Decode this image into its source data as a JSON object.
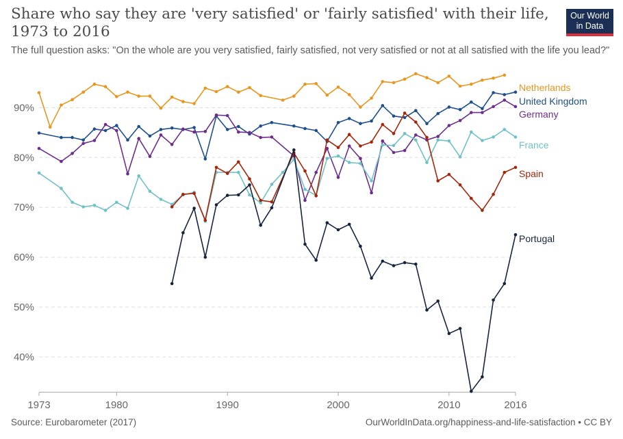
{
  "header": {
    "title": "Share who say they are 'very satisfied' or 'fairly satisfied' with their life, 1973 to 2016",
    "subtitle": "The full question asks: \"On the whole are you very satisfied, fairly satisfied, not very satisfied or not at all satisfied with the life you lead?\"",
    "logo_line1": "Our World",
    "logo_line2": "in Data"
  },
  "footer": {
    "source": "Source: Eurobarometer (2017)",
    "credit": "OurWorldInData.org/happiness-and-life-satisfaction • CC BY"
  },
  "colors": {
    "logo_bg": "#1b2f56",
    "logo_accent": "#d7313e"
  },
  "chart_data": {
    "type": "line",
    "xlim": [
      1973,
      2016
    ],
    "ylim": [
      33,
      98
    ],
    "x_ticks": [
      1973,
      1980,
      1990,
      2000,
      2010,
      2016
    ],
    "x_tick_labels": [
      "1973",
      "1980",
      "1990",
      "2000",
      "2010",
      "2016"
    ],
    "y_ticks": [
      40,
      50,
      60,
      70,
      80,
      90
    ],
    "y_tick_labels": [
      "40%",
      "50%",
      "60%",
      "70%",
      "80%",
      "90%"
    ],
    "grid": "horizontal dashed",
    "legend": "labels at line ends, right",
    "series": [
      {
        "name": "Netherlands",
        "color": "#e8961e",
        "points": [
          [
            1973,
            93
          ],
          [
            1974,
            86.1
          ],
          [
            1975,
            90.5
          ],
          [
            1976,
            91.6
          ],
          [
            1977,
            93.1
          ],
          [
            1978,
            94.7
          ],
          [
            1979,
            94.2
          ],
          [
            1980,
            92.2
          ],
          [
            1981,
            93.1
          ],
          [
            1982,
            92.3
          ],
          [
            1983,
            92.3
          ],
          [
            1984,
            89.9
          ],
          [
            1985,
            92.1
          ],
          [
            1986,
            91.2
          ],
          [
            1987,
            90.8
          ],
          [
            1988,
            93.9
          ],
          [
            1989,
            93.2
          ],
          [
            1990,
            94.2
          ],
          [
            1991,
            93.1
          ],
          [
            1992,
            94
          ],
          [
            1993,
            92.4
          ],
          [
            1995,
            91.5
          ],
          [
            1996,
            92.3
          ],
          [
            1997,
            94.7
          ],
          [
            1998,
            94.8
          ],
          [
            1999,
            92.5
          ],
          [
            2000,
            94.1
          ],
          [
            2001,
            92.6
          ],
          [
            2002,
            90.1
          ],
          [
            2003,
            91.9
          ],
          [
            2004,
            95.2
          ],
          [
            2005,
            95
          ],
          [
            2006,
            95.7
          ],
          [
            2007,
            96.8
          ],
          [
            2008,
            96
          ],
          [
            2009,
            95
          ],
          [
            2010,
            96.3
          ],
          [
            2011,
            94.3
          ],
          [
            2012,
            94.7
          ],
          [
            2013,
            95.5
          ],
          [
            2014,
            95.9
          ],
          [
            2015,
            96.5
          ]
        ]
      },
      {
        "name": "United Kingdom",
        "color": "#1d4f8c",
        "points": [
          [
            1973,
            84.9
          ],
          [
            1975,
            84
          ],
          [
            1976,
            84
          ],
          [
            1977,
            83.5
          ],
          [
            1978,
            85.7
          ],
          [
            1979,
            85.4
          ],
          [
            1980,
            86.4
          ],
          [
            1981,
            83.5
          ],
          [
            1982,
            86.2
          ],
          [
            1983,
            84.3
          ],
          [
            1984,
            85.6
          ],
          [
            1985,
            85.9
          ],
          [
            1986,
            85.6
          ],
          [
            1987,
            86
          ],
          [
            1988,
            79.7
          ],
          [
            1989,
            88.3
          ],
          [
            1990,
            85.6
          ],
          [
            1991,
            86.2
          ],
          [
            1992,
            84.7
          ],
          [
            1993,
            86.3
          ],
          [
            1994,
            87
          ],
          [
            1996,
            86.3
          ],
          [
            1997,
            85.8
          ],
          [
            1998,
            85.4
          ],
          [
            1999,
            83.2
          ],
          [
            2000,
            87
          ],
          [
            2001,
            87.8
          ],
          [
            2002,
            86.8
          ],
          [
            2003,
            87.3
          ],
          [
            2004,
            90.4
          ],
          [
            2005,
            88.3
          ],
          [
            2006,
            88
          ],
          [
            2007,
            89.4
          ],
          [
            2008,
            86.8
          ],
          [
            2009,
            88.8
          ],
          [
            2010,
            90.1
          ],
          [
            2011,
            89.6
          ],
          [
            2012,
            91.1
          ],
          [
            2013,
            89.8
          ],
          [
            2014,
            93
          ],
          [
            2015,
            92.6
          ],
          [
            2016,
            93.1
          ]
        ]
      },
      {
        "name": "Germany",
        "color": "#6d2e8b",
        "points": [
          [
            1973,
            81.8
          ],
          [
            1975,
            79.2
          ],
          [
            1976,
            80.8
          ],
          [
            1977,
            82.8
          ],
          [
            1978,
            83.4
          ],
          [
            1979,
            86.6
          ],
          [
            1980,
            85.4
          ],
          [
            1981,
            76.7
          ],
          [
            1982,
            83.8
          ],
          [
            1983,
            80.2
          ],
          [
            1984,
            84.5
          ],
          [
            1985,
            82.6
          ],
          [
            1986,
            85.7
          ],
          [
            1987,
            85.1
          ],
          [
            1988,
            85.2
          ],
          [
            1989,
            88.5
          ],
          [
            1990,
            88.4
          ],
          [
            1991,
            85.1
          ],
          [
            1992,
            85
          ],
          [
            1993,
            84
          ],
          [
            1994,
            84.1
          ],
          [
            1996,
            80.3
          ],
          [
            1997,
            71.4
          ],
          [
            1998,
            77
          ],
          [
            1999,
            81.8
          ],
          [
            2000,
            76
          ],
          [
            2001,
            82.3
          ],
          [
            2002,
            79.8
          ],
          [
            2003,
            72.9
          ],
          [
            2004,
            83.3
          ],
          [
            2005,
            81
          ],
          [
            2006,
            81.4
          ],
          [
            2007,
            84.5
          ],
          [
            2008,
            83.5
          ],
          [
            2009,
            84.2
          ],
          [
            2010,
            86.4
          ],
          [
            2011,
            87.4
          ],
          [
            2012,
            89
          ],
          [
            2013,
            89
          ],
          [
            2014,
            90.2
          ],
          [
            2015,
            91.5
          ],
          [
            2016,
            90.2
          ]
        ]
      },
      {
        "name": "France",
        "color": "#6fc1c9",
        "points": [
          [
            1973,
            76.9
          ],
          [
            1975,
            73.8
          ],
          [
            1976,
            71
          ],
          [
            1977,
            70.1
          ],
          [
            1978,
            70.4
          ],
          [
            1979,
            69.4
          ],
          [
            1980,
            71
          ],
          [
            1981,
            69.8
          ],
          [
            1982,
            76.3
          ],
          [
            1983,
            73.2
          ],
          [
            1984,
            71.6
          ],
          [
            1985,
            70.6
          ],
          [
            1986,
            72.5
          ],
          [
            1987,
            73
          ],
          [
            1988,
            67.2
          ],
          [
            1989,
            77
          ],
          [
            1990,
            77
          ],
          [
            1991,
            77
          ],
          [
            1992,
            72.5
          ],
          [
            1993,
            70.9
          ],
          [
            1994,
            74.6
          ],
          [
            1995,
            77
          ],
          [
            1996,
            79.6
          ],
          [
            1997,
            73.6
          ],
          [
            1998,
            72.4
          ],
          [
            1999,
            79.8
          ],
          [
            2000,
            80.3
          ],
          [
            2001,
            79
          ],
          [
            2002,
            78.8
          ],
          [
            2003,
            75.3
          ],
          [
            2004,
            82.5
          ],
          [
            2005,
            82.4
          ],
          [
            2006,
            84.8
          ],
          [
            2007,
            83.5
          ],
          [
            2008,
            79
          ],
          [
            2009,
            83.5
          ],
          [
            2010,
            83.3
          ],
          [
            2011,
            80.1
          ],
          [
            2012,
            85.1
          ],
          [
            2013,
            83.4
          ],
          [
            2014,
            84.1
          ],
          [
            2015,
            85.6
          ],
          [
            2016,
            84.1
          ]
        ]
      },
      {
        "name": "Spain",
        "color": "#a5250b",
        "points": [
          [
            1985,
            70.1
          ],
          [
            1986,
            72.6
          ],
          [
            1987,
            72.8
          ],
          [
            1988,
            67.4
          ],
          [
            1989,
            78
          ],
          [
            1990,
            76.8
          ],
          [
            1991,
            79.1
          ],
          [
            1992,
            75.7
          ],
          [
            1993,
            71.4
          ],
          [
            1994,
            71.1
          ],
          [
            1996,
            80.9
          ],
          [
            1997,
            77.3
          ],
          [
            1998,
            72.3
          ],
          [
            1999,
            83.5
          ],
          [
            2000,
            82
          ],
          [
            2001,
            84.6
          ],
          [
            2002,
            82.3
          ],
          [
            2003,
            83.1
          ],
          [
            2004,
            86.6
          ],
          [
            2005,
            84.8
          ],
          [
            2006,
            88.9
          ],
          [
            2007,
            87.1
          ],
          [
            2008,
            84
          ],
          [
            2009,
            75.3
          ],
          [
            2010,
            76.6
          ],
          [
            2011,
            74.5
          ],
          [
            2012,
            71.8
          ],
          [
            2013,
            69.4
          ],
          [
            2014,
            72.6
          ],
          [
            2015,
            77
          ],
          [
            2016,
            78
          ]
        ]
      },
      {
        "name": "Portugal",
        "color": "#17243f",
        "points": [
          [
            1985,
            54.7
          ],
          [
            1986,
            64.9
          ],
          [
            1987,
            69.8
          ],
          [
            1988,
            60
          ],
          [
            1989,
            70.5
          ],
          [
            1990,
            72.4
          ],
          [
            1991,
            72.5
          ],
          [
            1992,
            74.5
          ],
          [
            1993,
            66.4
          ],
          [
            1994,
            69.9
          ],
          [
            1996,
            81.5
          ],
          [
            1997,
            62.6
          ],
          [
            1998,
            59.4
          ],
          [
            1999,
            66.9
          ],
          [
            2000,
            65.5
          ],
          [
            2001,
            66.6
          ],
          [
            2002,
            62.2
          ],
          [
            2003,
            55.8
          ],
          [
            2004,
            59.2
          ],
          [
            2005,
            58.3
          ],
          [
            2006,
            58.9
          ],
          [
            2007,
            58.6
          ],
          [
            2008,
            49.4
          ],
          [
            2009,
            51.2
          ],
          [
            2010,
            44.7
          ],
          [
            2011,
            45.7
          ],
          [
            2012,
            33.1
          ],
          [
            2013,
            36
          ],
          [
            2014,
            51.4
          ],
          [
            2015,
            54.7
          ],
          [
            2016,
            64.5
          ]
        ]
      }
    ]
  }
}
